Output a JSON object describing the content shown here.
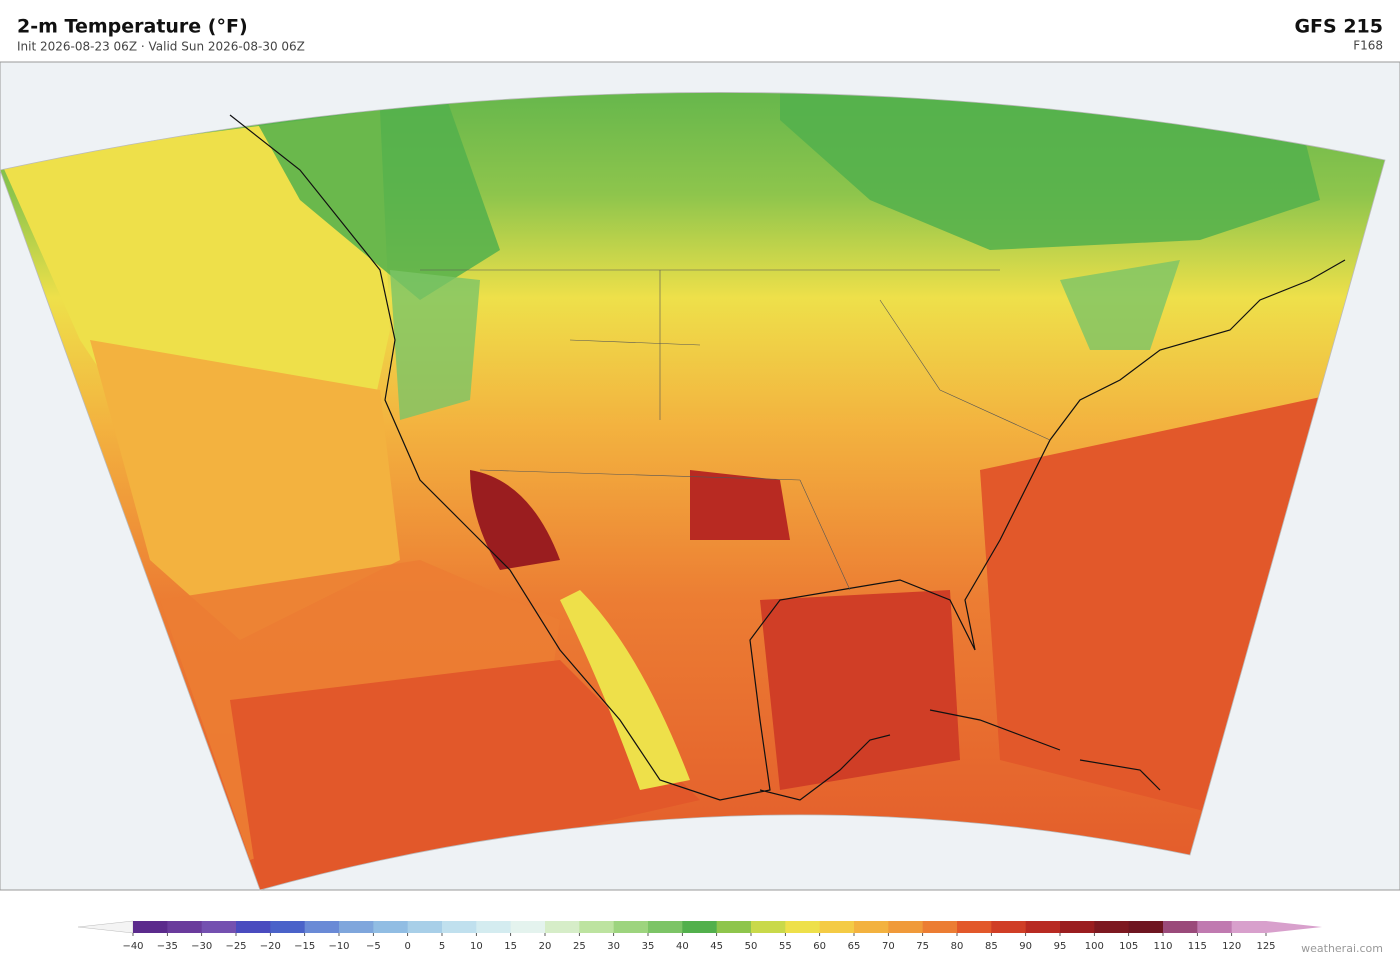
{
  "header": {
    "title": "2-m Temperature  (°F)",
    "subtitle": "Init 2026-08-23 06Z  ·  Valid Sun 2026-08-30 06Z",
    "model": "GFS  215",
    "forecast_hour": "F168"
  },
  "colorbar": {
    "ticks": [
      {
        "value": -40,
        "label": "−40"
      },
      {
        "value": -35,
        "label": "−35"
      },
      {
        "value": -30,
        "label": "−30"
      },
      {
        "value": -25,
        "label": "−25"
      },
      {
        "value": -20,
        "label": "−20"
      },
      {
        "value": -15,
        "label": "−15"
      },
      {
        "value": -10,
        "label": "−10"
      },
      {
        "value": -5,
        "label": "−5"
      },
      0,
      5,
      10,
      15,
      20,
      25,
      30,
      35,
      40,
      45,
      50,
      55,
      60,
      65,
      70,
      75,
      80,
      85,
      90,
      95,
      100,
      105,
      110,
      115,
      120,
      125
    ],
    "colors": [
      "#5b2a8c",
      "#6a3b9c",
      "#7450b0",
      "#4a4bbf",
      "#4a62c9",
      "#6a8ad6",
      "#7fa6dc",
      "#91bde3",
      "#a8cfe8",
      "#c0e0ee",
      "#d4ecf0",
      "#e4f3ee",
      "#d6edc8",
      "#bde3a0",
      "#9dd47e",
      "#7cc466",
      "#52b04c",
      "#8ec54c",
      "#c9d94a",
      "#eee04a",
      "#f4cb45",
      "#f3b23f",
      "#f09a3a",
      "#ec7d33",
      "#e2582a",
      "#d03e26",
      "#b82a22",
      "#9a1d1f",
      "#7d1820",
      "#6e1520",
      "#9a4a7a",
      "#c07ab0",
      "#d8a0cc"
    ],
    "under_color": "#f4f4f4",
    "over_color": "#d8a0cc"
  },
  "footer": {
    "credit": "weatherai.com"
  }
}
